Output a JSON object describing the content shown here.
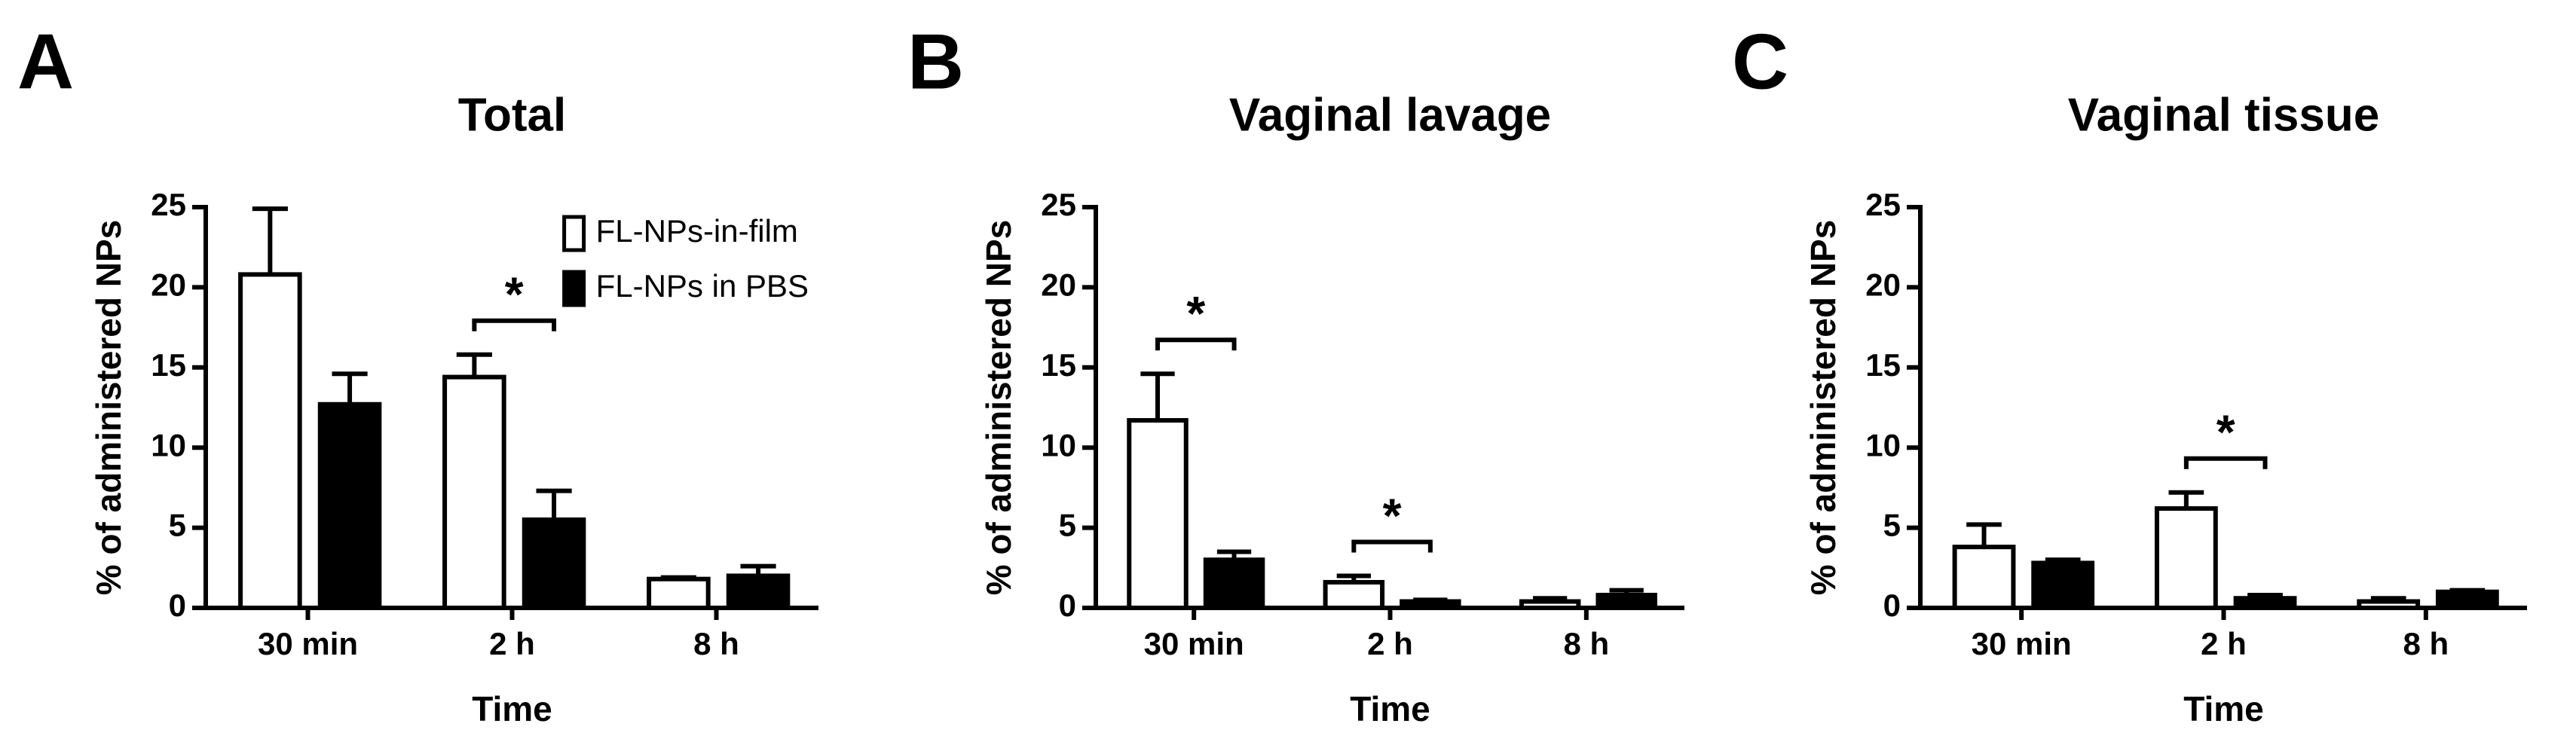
{
  "chart_data": [
    {
      "type": "bar",
      "panel": "A",
      "title": "Total",
      "xlabel": "Time",
      "ylabel": "% of administered NPs",
      "categories": [
        "30 min",
        "2 h",
        "8 h"
      ],
      "series": [
        {
          "name": "FL-NPs-in-film",
          "color": "#ffffff",
          "values": [
            20.8,
            14.4,
            1.8
          ],
          "errors": [
            4.1,
            1.4,
            0.1
          ]
        },
        {
          "name": "FL-NPs in PBS",
          "color": "#000000",
          "values": [
            12.7,
            5.5,
            2.0
          ],
          "errors": [
            1.9,
            1.8,
            0.6
          ]
        }
      ],
      "ylim": [
        0,
        25
      ],
      "yticks": [
        0,
        5,
        10,
        15,
        20,
        25
      ],
      "legend": "top-right",
      "annotations": [
        {
          "text": "*",
          "category": 1
        }
      ]
    },
    {
      "type": "bar",
      "panel": "B",
      "title": "Vaginal lavage",
      "xlabel": "Time",
      "ylabel": "% of administered NPs",
      "categories": [
        "30 min",
        "2 h",
        "8 h"
      ],
      "series": [
        {
          "color": "#ffffff",
          "values": [
            11.7,
            1.6,
            0.4
          ],
          "errors": [
            2.9,
            0.4,
            0.2
          ]
        },
        {
          "color": "#000000",
          "values": [
            3.0,
            0.4,
            0.8
          ],
          "errors": [
            0.5,
            0.1,
            0.3
          ]
        }
      ],
      "ylim": [
        0,
        25
      ],
      "yticks": [
        0,
        5,
        10,
        15,
        20,
        25
      ],
      "annotations": [
        {
          "text": "*",
          "category": 0
        },
        {
          "text": "*",
          "category": 1
        }
      ]
    },
    {
      "type": "bar",
      "panel": "C",
      "title": "Vaginal tissue",
      "xlabel": "Time",
      "ylabel": "% of administered NPs",
      "categories": [
        "30 min",
        "2 h",
        "8 h"
      ],
      "series": [
        {
          "color": "#ffffff",
          "values": [
            3.8,
            6.2,
            0.4
          ],
          "errors": [
            1.4,
            1.0,
            0.2
          ]
        },
        {
          "color": "#000000",
          "values": [
            2.8,
            0.6,
            1.0
          ],
          "errors": [
            0.2,
            0.2,
            0.1
          ]
        }
      ],
      "ylim": [
        0,
        25
      ],
      "yticks": [
        0,
        5,
        10,
        15,
        20,
        25
      ],
      "annotations": [
        {
          "text": "*",
          "category": 1
        }
      ]
    }
  ]
}
